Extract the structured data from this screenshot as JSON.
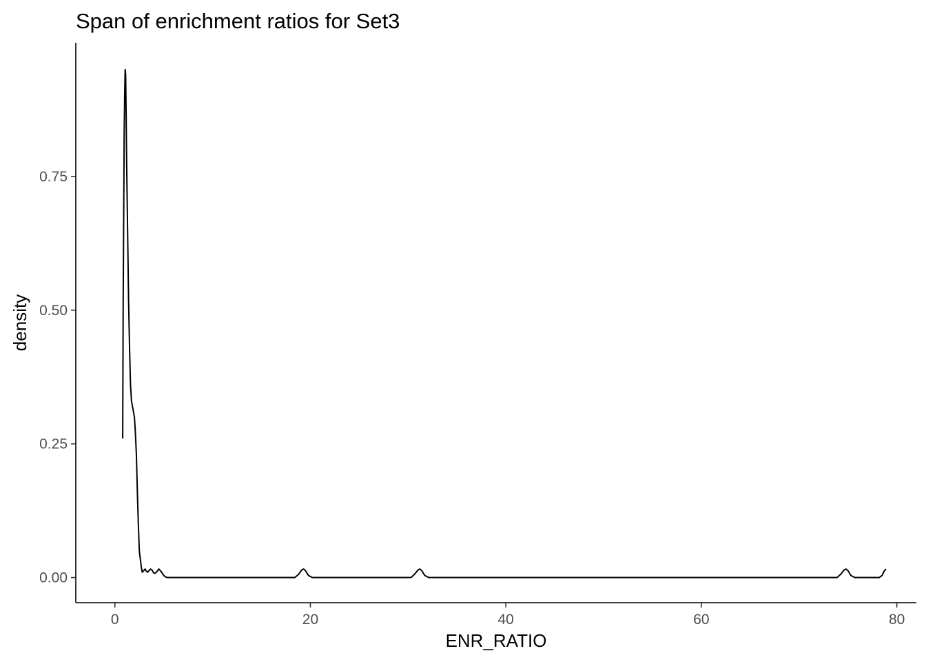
{
  "chart_data": {
    "type": "line",
    "title": "Span of enrichment ratios for Set3",
    "xlabel": "ENR_RATIO",
    "ylabel": "density",
    "xlim": [
      -4,
      82
    ],
    "ylim": [
      -0.047,
      1.0
    ],
    "xticks": [
      0,
      20,
      40,
      60,
      80
    ],
    "xtick_labels": [
      "0",
      "20",
      "40",
      "60",
      "80"
    ],
    "yticks": [
      0.0,
      0.25,
      0.5,
      0.75
    ],
    "ytick_labels": [
      "0.00",
      "0.25",
      "0.50",
      "0.75"
    ],
    "grid": false,
    "legend": "none",
    "line_color": "#000000",
    "series": [
      {
        "x": [
          0.8,
          0.85,
          0.9,
          0.95,
          1.0,
          1.05,
          1.1,
          1.15,
          1.2,
          1.3,
          1.4,
          1.5,
          1.6,
          1.7,
          1.8,
          1.9,
          2.0,
          2.1,
          2.2,
          2.3,
          2.4,
          2.5,
          2.6,
          2.7,
          2.8,
          2.9,
          3.0,
          3.1,
          3.2,
          3.35,
          3.5,
          3.65,
          3.8,
          3.95,
          4.1,
          4.3,
          4.5,
          4.7,
          4.85,
          5.0,
          5.2,
          5.4,
          5.6,
          5.8,
          6.0,
          10.0,
          15.0,
          18.4,
          18.8,
          19.1,
          19.3,
          19.5,
          19.8,
          20.2,
          25.0,
          30.3,
          30.7,
          31.0,
          31.2,
          31.4,
          31.7,
          32.1,
          40.0,
          50.0,
          60.0,
          70.0,
          73.9,
          74.3,
          74.6,
          74.8,
          75.0,
          75.3,
          75.7,
          77.0,
          78.2,
          78.5,
          78.7,
          78.9
        ],
        "y": [
          0.26,
          0.52,
          0.67,
          0.83,
          0.9,
          0.95,
          0.94,
          0.87,
          0.78,
          0.65,
          0.52,
          0.43,
          0.36,
          0.33,
          0.32,
          0.31,
          0.3,
          0.27,
          0.23,
          0.16,
          0.1,
          0.05,
          0.035,
          0.02,
          0.01,
          0.012,
          0.014,
          0.016,
          0.012,
          0.01,
          0.013,
          0.016,
          0.014,
          0.009,
          0.008,
          0.011,
          0.016,
          0.012,
          0.008,
          0.004,
          0.001,
          0.0,
          0.0,
          0.0,
          0.0,
          0.0,
          0.0,
          0.0,
          0.006,
          0.014,
          0.016,
          0.013,
          0.004,
          0.0,
          0.0,
          0.0,
          0.007,
          0.014,
          0.016,
          0.013,
          0.004,
          0.0,
          0.0,
          0.0,
          0.0,
          0.0,
          0.0,
          0.007,
          0.014,
          0.016,
          0.013,
          0.004,
          0.0,
          0.0,
          0.0,
          0.004,
          0.012,
          0.016
        ]
      }
    ]
  }
}
